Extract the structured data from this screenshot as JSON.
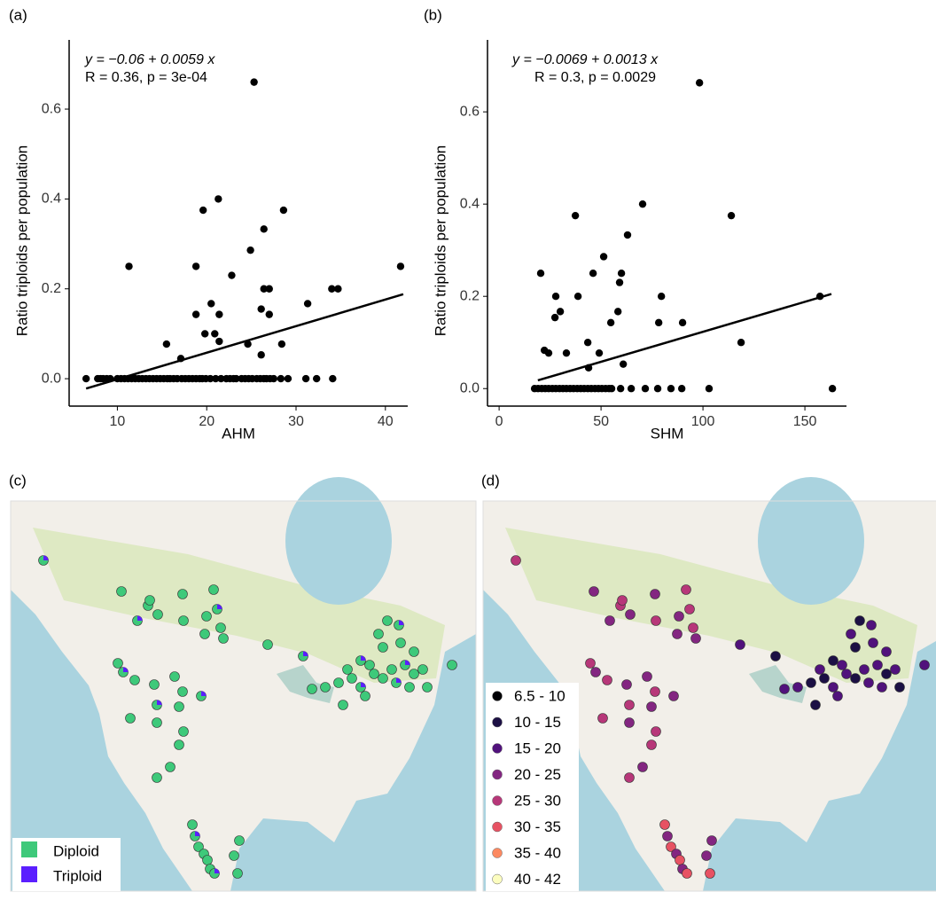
{
  "panel_labels": [
    "(a)",
    "(b)",
    "(c)",
    "(d)"
  ],
  "chart_data": [
    {
      "type": "scatter",
      "annotation": [
        "y = −0.06 + 0.0059 x",
        "R = 0.36, p = 3e-04"
      ],
      "x_label": "AHM",
      "y_label": "Ratio triploids per population",
      "color": "#000000",
      "x": [
        6.5,
        7.8,
        8.1,
        8.4,
        8.8,
        9.2,
        10,
        10.4,
        10.8,
        11.2,
        11.6,
        12.0,
        12.4,
        12.8,
        13.2,
        13.6,
        14.0,
        14.4,
        14.8,
        15.2,
        15.6,
        15.9,
        16.3,
        16.7,
        17.2,
        17.6,
        18.0,
        18.4,
        18.8,
        19.2,
        19.5,
        19.9,
        20.4,
        21.0,
        21.6,
        22.2,
        22.6,
        23.0,
        23.3,
        23.9,
        24.3,
        24.7,
        25.1,
        25.6,
        26.0,
        26.4,
        26.7,
        27.1,
        27.5,
        28.3,
        29.1,
        31.1,
        32.3,
        34.1,
        11.3,
        15.5,
        17.1,
        18.8,
        18.8,
        19.6,
        19.8,
        20.5,
        20.9,
        21.3,
        21.4,
        21.4,
        22.8,
        24.6,
        24.9,
        25.3,
        26.1,
        26.1,
        26.4,
        26.4,
        27.0,
        27.0,
        28.4,
        28.6,
        31.3,
        34.0,
        34.7,
        41.7
      ],
      "y": [
        0,
        0,
        0,
        0,
        0,
        0,
        0,
        0,
        0,
        0,
        0,
        0,
        0,
        0,
        0,
        0,
        0,
        0,
        0,
        0,
        0,
        0,
        0,
        0,
        0,
        0,
        0,
        0,
        0,
        0,
        0,
        0,
        0,
        0,
        0,
        0,
        0,
        0,
        0,
        0,
        0,
        0,
        0,
        0,
        0,
        0,
        0,
        0,
        0,
        0,
        0,
        0,
        0,
        0,
        0.25,
        0.077,
        0.045,
        0.25,
        0.143,
        0.375,
        0.1,
        0.167,
        0.1,
        0.4,
        0.143,
        0.083,
        0.23,
        0.077,
        0.286,
        0.66,
        0.155,
        0.053,
        0.333,
        0.2,
        0.2,
        0.143,
        0.077,
        0.375,
        0.167,
        0.2,
        0.2,
        0.25
      ],
      "fit": {
        "x": [
          6.5,
          42
        ],
        "y": [
          -0.022,
          0.188
        ]
      },
      "xlim": [
        4.6,
        42.5
      ],
      "ylim": [
        -0.061,
        0.754
      ],
      "xticks": [
        10,
        20,
        30,
        40
      ],
      "yticks": [
        {
          "value": 0,
          "label": "0.0"
        },
        0.2,
        0.4,
        0.6
      ]
    },
    {
      "type": "scatter",
      "annotation": [
        "y = −0.0069 + 0.0013 x",
        "R = 0.3, p = 0.0029"
      ],
      "x_label": "SHM",
      "y_label": "Ratio triploids per population",
      "color": "#000000",
      "x": [
        17.4,
        19.1,
        20.9,
        22.6,
        24.3,
        26.1,
        27.8,
        29.6,
        31.3,
        33.0,
        34.8,
        36.5,
        38.3,
        40.0,
        41.7,
        43.5,
        45.2,
        47.0,
        48.7,
        50.4,
        52.2,
        53.9,
        55.2,
        59.6,
        64.8,
        71.7,
        77.8,
        84.3,
        89.6,
        103.0,
        163.5,
        20.4,
        22.2,
        24.3,
        27.4,
        27.8,
        30.0,
        33.0,
        38.7,
        37.4,
        43.5,
        43.9,
        46.1,
        49.1,
        51.3,
        54.8,
        58.3,
        59.1,
        60.0,
        60.9,
        63.0,
        70.4,
        78.3,
        79.6,
        90.0,
        98.3,
        113.9,
        118.7,
        157.4
      ],
      "y": [
        0,
        0,
        0,
        0,
        0,
        0,
        0,
        0,
        0,
        0,
        0,
        0,
        0,
        0,
        0,
        0,
        0,
        0,
        0,
        0,
        0,
        0,
        0,
        0,
        0,
        0,
        0,
        0,
        0,
        0,
        0,
        0.25,
        0.083,
        0.077,
        0.154,
        0.2,
        0.167,
        0.077,
        0.2,
        0.375,
        0.1,
        0.045,
        0.25,
        0.077,
        0.286,
        0.143,
        0.167,
        0.23,
        0.25,
        0.053,
        0.333,
        0.4,
        0.143,
        0.2,
        0.143,
        0.663,
        0.375,
        0.1,
        0.2
      ],
      "fit": {
        "x": [
          19,
          163
        ],
        "y": [
          0.0178,
          0.205
        ]
      },
      "xlim": [
        -5.7,
        170.4
      ],
      "ylim": [
        -0.038,
        0.756
      ],
      "xticks": [
        0,
        50,
        100,
        150
      ],
      "yticks": [
        {
          "value": 0,
          "label": "0.0"
        },
        0.2,
        0.4,
        0.6
      ]
    }
  ],
  "maps": [
    {
      "legend": [
        {
          "label": "Diploid",
          "color": "#3ec97a"
        },
        {
          "label": "Triploid",
          "color": "#5b1fff"
        }
      ]
    },
    {
      "legend": [
        {
          "label": "6.5 - 10",
          "color": "#000004"
        },
        {
          "label": "10 - 15",
          "color": "#1c1044"
        },
        {
          "label": "15 - 20",
          "color": "#51127c"
        },
        {
          "label": "20 - 25",
          "color": "#832681"
        },
        {
          "label": "25 - 30",
          "color": "#b73779"
        },
        {
          "label": "30 - 35",
          "color": "#e75263"
        },
        {
          "label": "35 - 40",
          "color": "#fc8961"
        },
        {
          "label": "40 - 42",
          "color": "#fcfdbf"
        }
      ]
    }
  ]
}
